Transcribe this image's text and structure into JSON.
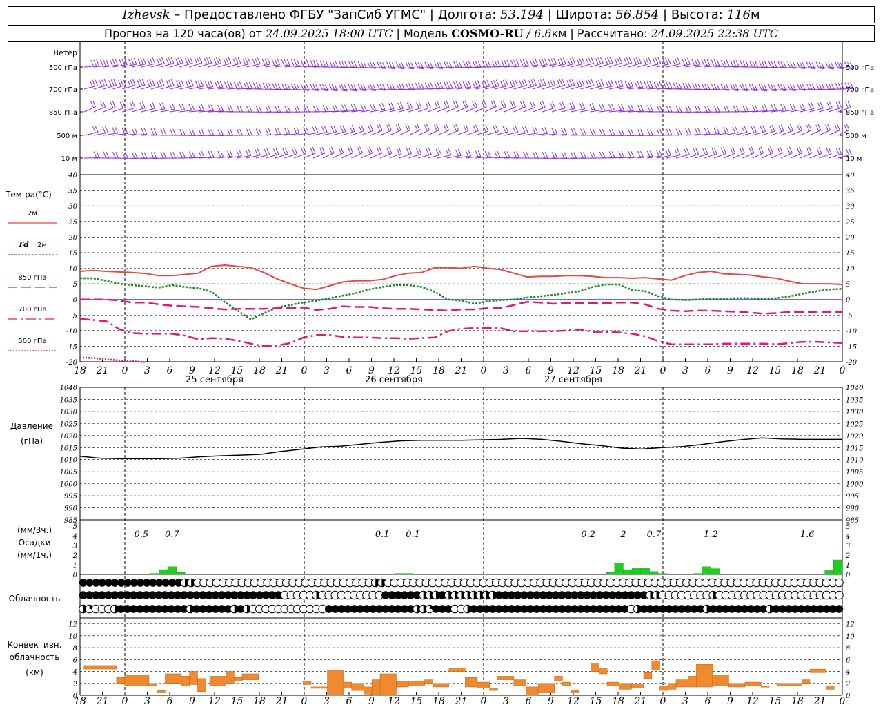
{
  "header": {
    "city": "Izhevsk",
    "provider": "– Предоставлено ФГБУ \"ЗапСиб УГМС\" |",
    "lon_label": "Долгота:",
    "lon": "53.194",
    "lat_label": "| Широта:",
    "lat": "56.854",
    "alt_label": "| Высота:",
    "alt": "116",
    "alt_unit": "м",
    "forecast_label": "Прогноз на 120 часа(ов) от",
    "forecast_time": "24.09.2025 18:00 UTC",
    "model_label": "| Модель",
    "model": "COSMO-RU",
    "model_res": "/ 6.6",
    "model_res_unit": "км",
    "calc_label": "| Рассчитано:",
    "calc_time": "24.09.2025 22:38 UTC"
  },
  "colors": {
    "wind": "#8a2be2",
    "t2m": "#e84545",
    "td2m": "#1a8a1a",
    "t850": "#e0187a",
    "t700": "#e0187a",
    "t500": "#e0187a",
    "pressure": "#000000",
    "precip": "#22cc22",
    "convective": "#f08a30"
  },
  "time_axis": {
    "hour_labels": [
      "18",
      "21",
      "0",
      "3",
      "6",
      "9",
      "12",
      "15",
      "18",
      "21",
      "0",
      "3",
      "6",
      "9",
      "12",
      "15",
      "18",
      "21",
      "0",
      "3",
      "6",
      "9",
      "12",
      "15",
      "18",
      "21",
      "0",
      "3",
      "6",
      "9",
      "12",
      "15",
      "18",
      "21",
      "0"
    ],
    "day_labels": [
      {
        "text": "25 сентября",
        "index": 6
      },
      {
        "text": "26 сентября",
        "index": 14
      },
      {
        "text": "27 сентября",
        "index": 22
      }
    ],
    "midnight_indices": [
      2,
      10,
      18,
      26,
      34
    ]
  },
  "wind_panel": {
    "title": "Ветер",
    "levels": [
      "500 гПа",
      "700 гПа",
      "850 гПа",
      "500 м",
      "10  м"
    ]
  },
  "chart_data": [
    {
      "type": "line",
      "title": "Тем-ра(°C)",
      "ylim": [
        -20,
        40
      ],
      "yticks": [
        -20,
        -15,
        -10,
        -5,
        0,
        5,
        10,
        15,
        20,
        25,
        30,
        35,
        40
      ],
      "series": [
        {
          "name": "2м",
          "style": "solid",
          "values": [
            9,
            9.3,
            9,
            8.8,
            8.6,
            8.3,
            7.6,
            7.6,
            8,
            8.4,
            10.6,
            11,
            10.6,
            10.2,
            8.6,
            6.6,
            5,
            3.6,
            3.2,
            4.4,
            5.6,
            6,
            6,
            6.4,
            7.6,
            8.4,
            8.6,
            10.2,
            10.2,
            10,
            10.6,
            10,
            9.6,
            8.4,
            7.2,
            7.4,
            7.4,
            7.6,
            7.6,
            7.4,
            7,
            7,
            6.8,
            7,
            6.6,
            6.2,
            7.6,
            8.6,
            9,
            8.2,
            8,
            7.8,
            7.2,
            6.8,
            5.8,
            5,
            5,
            5,
            4.8
          ]
        },
        {
          "name": "Td 2м",
          "style": "dotted",
          "values": [
            6.8,
            6.8,
            6,
            5,
            4.6,
            4.2,
            3.8,
            4.6,
            4,
            3.6,
            2.5,
            -0.8,
            -3.6,
            -6.4,
            -4.4,
            -2.6,
            -1.8,
            -1,
            -0.4,
            0.4,
            1.2,
            2,
            3.2,
            4,
            4.6,
            4.6,
            4,
            2.4,
            0,
            -0.4,
            -1.4,
            -0.6,
            -0.2,
            0,
            0.6,
            1,
            1.4,
            2,
            2.6,
            4,
            4.8,
            4.8,
            3,
            2.6,
            1,
            0,
            -0.2,
            0,
            0.2,
            0.2,
            0.4,
            0.4,
            0.2,
            0.4,
            1,
            1.8,
            2.6,
            3.2,
            3.4
          ]
        },
        {
          "name": "850 гПа",
          "style": "dashed",
          "values": [
            0,
            0,
            0,
            -0.4,
            -1,
            -1,
            -1.6,
            -2,
            -2.2,
            -2.4,
            -2.8,
            -3.2,
            -3,
            -3,
            -3,
            -2.8,
            -2.8,
            -2.6,
            -3.4,
            -3,
            -2.2,
            -2.4,
            -2.4,
            -2.8,
            -3,
            -3,
            -3.2,
            -3.4,
            -3.6,
            -3.2,
            -3.2,
            -2.8,
            -2.8,
            -1.8,
            -0.8,
            -1,
            -1.4,
            -1.2,
            -1.2,
            -1.2,
            -1.2,
            -1,
            -1,
            -1.6,
            -3,
            -3.6,
            -3.8,
            -3.6,
            -3.6,
            -3.8,
            -4,
            -4.2,
            -4.6,
            -4.4,
            -4,
            -4,
            -4,
            -4,
            -4
          ]
        },
        {
          "name": "700 гПа",
          "style": "dashdot",
          "values": [
            -6.2,
            -6.6,
            -7,
            -9.6,
            -10.8,
            -11,
            -11,
            -11,
            -11.6,
            -12.8,
            -12.4,
            -12.6,
            -13.2,
            -14.2,
            -15,
            -14.8,
            -14,
            -12.2,
            -11.4,
            -11.4,
            -12,
            -12.2,
            -12.2,
            -12.4,
            -12.4,
            -12.6,
            -12.4,
            -12.2,
            -10.2,
            -9.4,
            -9.2,
            -9.2,
            -9.2,
            -10.2,
            -10.2,
            -10.2,
            -10.2,
            -10,
            -9.6,
            -10.4,
            -10.4,
            -10.6,
            -11,
            -11.8,
            -13.4,
            -14.4,
            -14.4,
            -14.4,
            -14.4,
            -14.2,
            -14.2,
            -14.2,
            -14.2,
            -14.4,
            -14,
            -13.6,
            -13.6,
            -13.8,
            -14
          ]
        },
        {
          "name": "500 гПа",
          "style": "densedot",
          "values": [
            -18.6,
            -18.8,
            -19.2,
            -19.6,
            -19.8,
            -20.2,
            null,
            null,
            null,
            null,
            null,
            null,
            null,
            null,
            null,
            null,
            null,
            null,
            null,
            null,
            null,
            null,
            null,
            null,
            null,
            null,
            null,
            null,
            null,
            null,
            null,
            null,
            null,
            null,
            null,
            null,
            null,
            null,
            null,
            null,
            null,
            null,
            null,
            null,
            null,
            null,
            null,
            null,
            null,
            null,
            null,
            null,
            null,
            null,
            null,
            null,
            null,
            null,
            null
          ]
        }
      ]
    },
    {
      "type": "line",
      "title": "Давление",
      "unit": "(гПа)",
      "ylim": [
        985,
        1040
      ],
      "yticks": [
        985,
        990,
        995,
        1000,
        1005,
        1010,
        1015,
        1020,
        1025,
        1030,
        1035,
        1040
      ],
      "series": [
        {
          "name": "",
          "values": [
            1011.4,
            1010.6,
            1010.4,
            1010.4,
            1010.4,
            1010.6,
            1011.2,
            1011.6,
            1011.9,
            1012.2,
            1013.4,
            1014.3,
            1015.3,
            1015.6,
            1016.4,
            1017.2,
            1017.8,
            1018,
            1018,
            1018,
            1018.2,
            1018.4,
            1018.8,
            1018.4,
            1017.6,
            1016.6,
            1015.8,
            1014.8,
            1014.4,
            1015,
            1015.4,
            1016.3,
            1017.4,
            1018.3,
            1019,
            1018.6,
            1018.4,
            1018.4,
            1018.4
          ]
        }
      ]
    },
    {
      "type": "bar",
      "title": "Осадки",
      "unit_top": "(мм/3ч.)",
      "unit_bottom": "(мм/1ч.)",
      "ylim": [
        0,
        5
      ],
      "yticks": [
        0,
        1,
        2,
        3,
        4,
        5
      ],
      "annotations": [
        {
          "text": "0.5",
          "index": 7
        },
        {
          "text": "0.7",
          "index": 10.5
        },
        {
          "text": "0.1",
          "index": 34.5
        },
        {
          "text": "0.1",
          "index": 38
        },
        {
          "text": "0.2",
          "index": 58
        },
        {
          "text": "2",
          "index": 62
        },
        {
          "text": "0.7",
          "index": 65.5
        },
        {
          "text": "1.2",
          "index": 72
        },
        {
          "text": "1.6",
          "index": 83
        }
      ],
      "values": [
        0,
        0,
        0,
        0,
        0,
        0,
        0,
        0,
        0.1,
        0.5,
        0.8,
        0.2,
        0,
        0,
        0,
        0,
        0,
        0,
        0,
        0,
        0,
        0,
        0,
        0,
        0,
        0,
        0,
        0,
        0,
        0,
        0,
        0,
        0,
        0,
        0,
        0,
        0.1,
        0.1,
        0,
        0,
        0,
        0,
        0,
        0,
        0,
        0,
        0,
        0,
        0,
        0,
        0,
        0,
        0,
        0,
        0,
        0,
        0,
        0,
        0,
        0,
        0.2,
        1.2,
        0.5,
        0.7,
        0.7,
        0.3,
        0.1,
        0,
        0,
        0,
        0.1,
        0.8,
        0.6,
        0,
        0,
        0,
        0,
        0,
        0,
        0,
        0,
        0,
        0,
        0,
        0,
        0.4,
        1.5
      ]
    },
    {
      "type": "table",
      "title": "Облачность",
      "rows": [
        "FFFFFFFFFFFFFFFFHHEEEEEEEEEEEEEEEEEEEEEEEEEEEEHHEEEEEEEEEEEEEEEEEEEEEEEEEEEEEEEEEEEEEEEEEEEEEEEEEEEEEEEEEEEEEEEEEEEEEEEE",
        "FFFFFFFFFFFFFFFFFFFFFFFFFFFFFFFFEEEEEHEEEEEEEEEEFFFFFFHHHFHHHHHHHHFFFFFFFFFFFFFFFFFFFFFFFFHHEEEEEEEEHEEEEEEEEEEEEEEEEEEEE",
        "HQEEEHFFFFFFFFFFFHFFFFFFHFHEEEEEEEEEEEEFFFFFFFFFFFFFFHHQFFFEEHFFFFFFFFFFFFFFFFFFFFFFFFFEHFFFFFFFFFFHFFFFFFFFFHFFFFFFFFFFF"
      ]
    },
    {
      "type": "bar",
      "title": "Конвективн. облачность",
      "unit": "(км)",
      "ylim": [
        0,
        13
      ],
      "yticks": [
        0,
        2,
        4,
        6,
        8,
        10,
        12
      ],
      "segments": [
        {
          "from": 1,
          "to": 9,
          "base": 4.4,
          "top": 5
        },
        {
          "from": 9,
          "to": 11,
          "base": 2,
          "top": 3
        },
        {
          "from": 11,
          "to": 17,
          "base": 1.6,
          "top": 3.4
        },
        {
          "from": 17,
          "to": 19,
          "base": 1.6,
          "top": 2
        },
        {
          "from": 19,
          "to": 21,
          "base": 0.4,
          "top": 0.8
        },
        {
          "from": 21,
          "to": 25,
          "base": 2,
          "top": 3.6
        },
        {
          "from": 25,
          "to": 27,
          "base": 1.6,
          "top": 3.2
        },
        {
          "from": 27,
          "to": 29,
          "base": 1.8,
          "top": 4
        },
        {
          "from": 29,
          "to": 31,
          "base": 0.6,
          "top": 2.8
        },
        {
          "from": 32,
          "to": 36,
          "base": 1.6,
          "top": 3.2
        },
        {
          "from": 36,
          "to": 38,
          "base": 2,
          "top": 4
        },
        {
          "from": 38,
          "to": 40,
          "base": 2.4,
          "top": 3
        },
        {
          "from": 40,
          "to": 44,
          "base": 2.6,
          "top": 3.6
        },
        {
          "from": 55,
          "to": 57,
          "base": 1.8,
          "top": 2.4
        },
        {
          "from": 57,
          "to": 61,
          "base": 1.2,
          "top": 1.4
        },
        {
          "from": 61,
          "to": 65,
          "base": 0,
          "top": 4.2
        },
        {
          "from": 65,
          "to": 67,
          "base": 1.2,
          "top": 2.2
        },
        {
          "from": 67,
          "to": 70,
          "base": 0.8,
          "top": 2
        },
        {
          "from": 70,
          "to": 72,
          "base": 0.2,
          "top": 1.4
        },
        {
          "from": 72,
          "to": 74,
          "base": 0,
          "top": 2.6
        },
        {
          "from": 74,
          "to": 78,
          "base": 0,
          "top": 3.6
        },
        {
          "from": 78,
          "to": 81,
          "base": 1.4,
          "top": 2.4
        },
        {
          "from": 81,
          "to": 85,
          "base": 1.6,
          "top": 2.4
        },
        {
          "from": 85,
          "to": 87,
          "base": 2,
          "top": 2.6
        },
        {
          "from": 87,
          "to": 91,
          "base": 1.4,
          "top": 2
        },
        {
          "from": 91,
          "to": 95,
          "base": 4,
          "top": 4.6
        },
        {
          "from": 95,
          "to": 98,
          "base": 1.4,
          "top": 3
        },
        {
          "from": 98,
          "to": 101,
          "base": 1.2,
          "top": 2.2
        },
        {
          "from": 101,
          "to": 103,
          "base": 0.8,
          "top": 1.2
        },
        {
          "from": 103,
          "to": 107,
          "base": 2.6,
          "top": 3.2
        },
        {
          "from": 107,
          "to": 110,
          "base": 1.6,
          "top": 2.6
        },
        {
          "from": 110,
          "to": 113,
          "base": 0,
          "top": 1.4
        },
        {
          "from": 113,
          "to": 117,
          "base": 0.4,
          "top": 2
        },
        {
          "from": 117,
          "to": 119,
          "base": 2.4,
          "top": 3.2
        },
        {
          "from": 119,
          "to": 121,
          "base": 1.6,
          "top": 2.2
        },
        {
          "from": 121,
          "to": 123,
          "base": 0.4,
          "top": 0.8
        },
        {
          "from": 126,
          "to": 128,
          "base": 4,
          "top": 5.4
        },
        {
          "from": 128,
          "to": 130,
          "base": 3.6,
          "top": 4.6
        },
        {
          "from": 130,
          "to": 133,
          "base": 1.6,
          "top": 2.2
        },
        {
          "from": 133,
          "to": 136,
          "base": 1,
          "top": 2
        },
        {
          "from": 136,
          "to": 139,
          "base": 1.2,
          "top": 1.8
        },
        {
          "from": 139,
          "to": 141,
          "base": 2.8,
          "top": 3.8
        },
        {
          "from": 141,
          "to": 143,
          "base": 4.2,
          "top": 5.8
        },
        {
          "from": 143,
          "to": 145,
          "base": 0.8,
          "top": 1.6
        },
        {
          "from": 145,
          "to": 147,
          "base": 1,
          "top": 2
        },
        {
          "from": 147,
          "to": 150,
          "base": 1.4,
          "top": 2.6
        },
        {
          "from": 150,
          "to": 152,
          "base": 1.4,
          "top": 3.2
        },
        {
          "from": 152,
          "to": 156,
          "base": 1.4,
          "top": 5.2
        },
        {
          "from": 156,
          "to": 160,
          "base": 1.6,
          "top": 3.4
        },
        {
          "from": 160,
          "to": 164,
          "base": 1.4,
          "top": 2
        },
        {
          "from": 164,
          "to": 168,
          "base": 1.6,
          "top": 2.2
        },
        {
          "from": 168,
          "to": 170,
          "base": 1.6,
          "top": 1.6
        },
        {
          "from": 172,
          "to": 178,
          "base": 1.6,
          "top": 2
        },
        {
          "from": 178,
          "to": 180,
          "base": 2,
          "top": 2.6
        },
        {
          "from": 180,
          "to": 184,
          "base": 3.8,
          "top": 4.4
        },
        {
          "from": 184,
          "to": 186,
          "base": 1,
          "top": 1.6
        }
      ]
    }
  ]
}
